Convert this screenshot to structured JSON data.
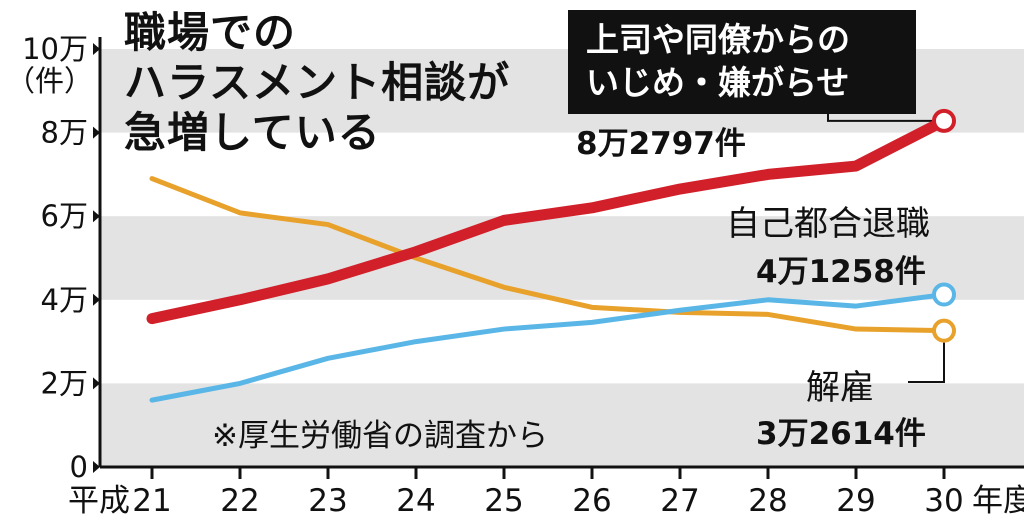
{
  "chart_data": {
    "type": "line",
    "title_lines": [
      "職場での",
      "ハラスメント相談が",
      "急増している"
    ],
    "y_unit": "（件）",
    "x_prefix": "平成",
    "x_suffix": "年度",
    "categories": [
      "21",
      "22",
      "23",
      "24",
      "25",
      "26",
      "27",
      "28",
      "29",
      "30"
    ],
    "ylim": [
      0,
      100000
    ],
    "yticks": [
      {
        "value": 0,
        "label": "0"
      },
      {
        "value": 20000,
        "label": "2万"
      },
      {
        "value": 40000,
        "label": "4万"
      },
      {
        "value": 60000,
        "label": "6万"
      },
      {
        "value": 80000,
        "label": "8万"
      },
      {
        "value": 100000,
        "label": "10万"
      }
    ],
    "grid": "alternating-bands",
    "series": [
      {
        "name": "解雇",
        "color": "#e8a12a",
        "values": [
          69000,
          60800,
          58000,
          50000,
          43000,
          38200,
          37000,
          36500,
          33000,
          32614
        ],
        "end_label": "3万2614件"
      },
      {
        "name": "自己都合退職",
        "color": "#5ab6e6",
        "values": [
          16000,
          20000,
          26000,
          30000,
          33000,
          34600,
          37500,
          40000,
          38500,
          41258
        ],
        "end_label": "4万1258件"
      },
      {
        "name_lines": [
          "上司や同僚からの",
          "いじめ・嫌がらせ"
        ],
        "color": "#d2202b",
        "values": [
          35500,
          40000,
          45000,
          51500,
          59000,
          62000,
          66500,
          70000,
          72000,
          82797
        ],
        "end_label": "8万2797件"
      }
    ],
    "source_note": "※厚生労働省の調査から"
  }
}
